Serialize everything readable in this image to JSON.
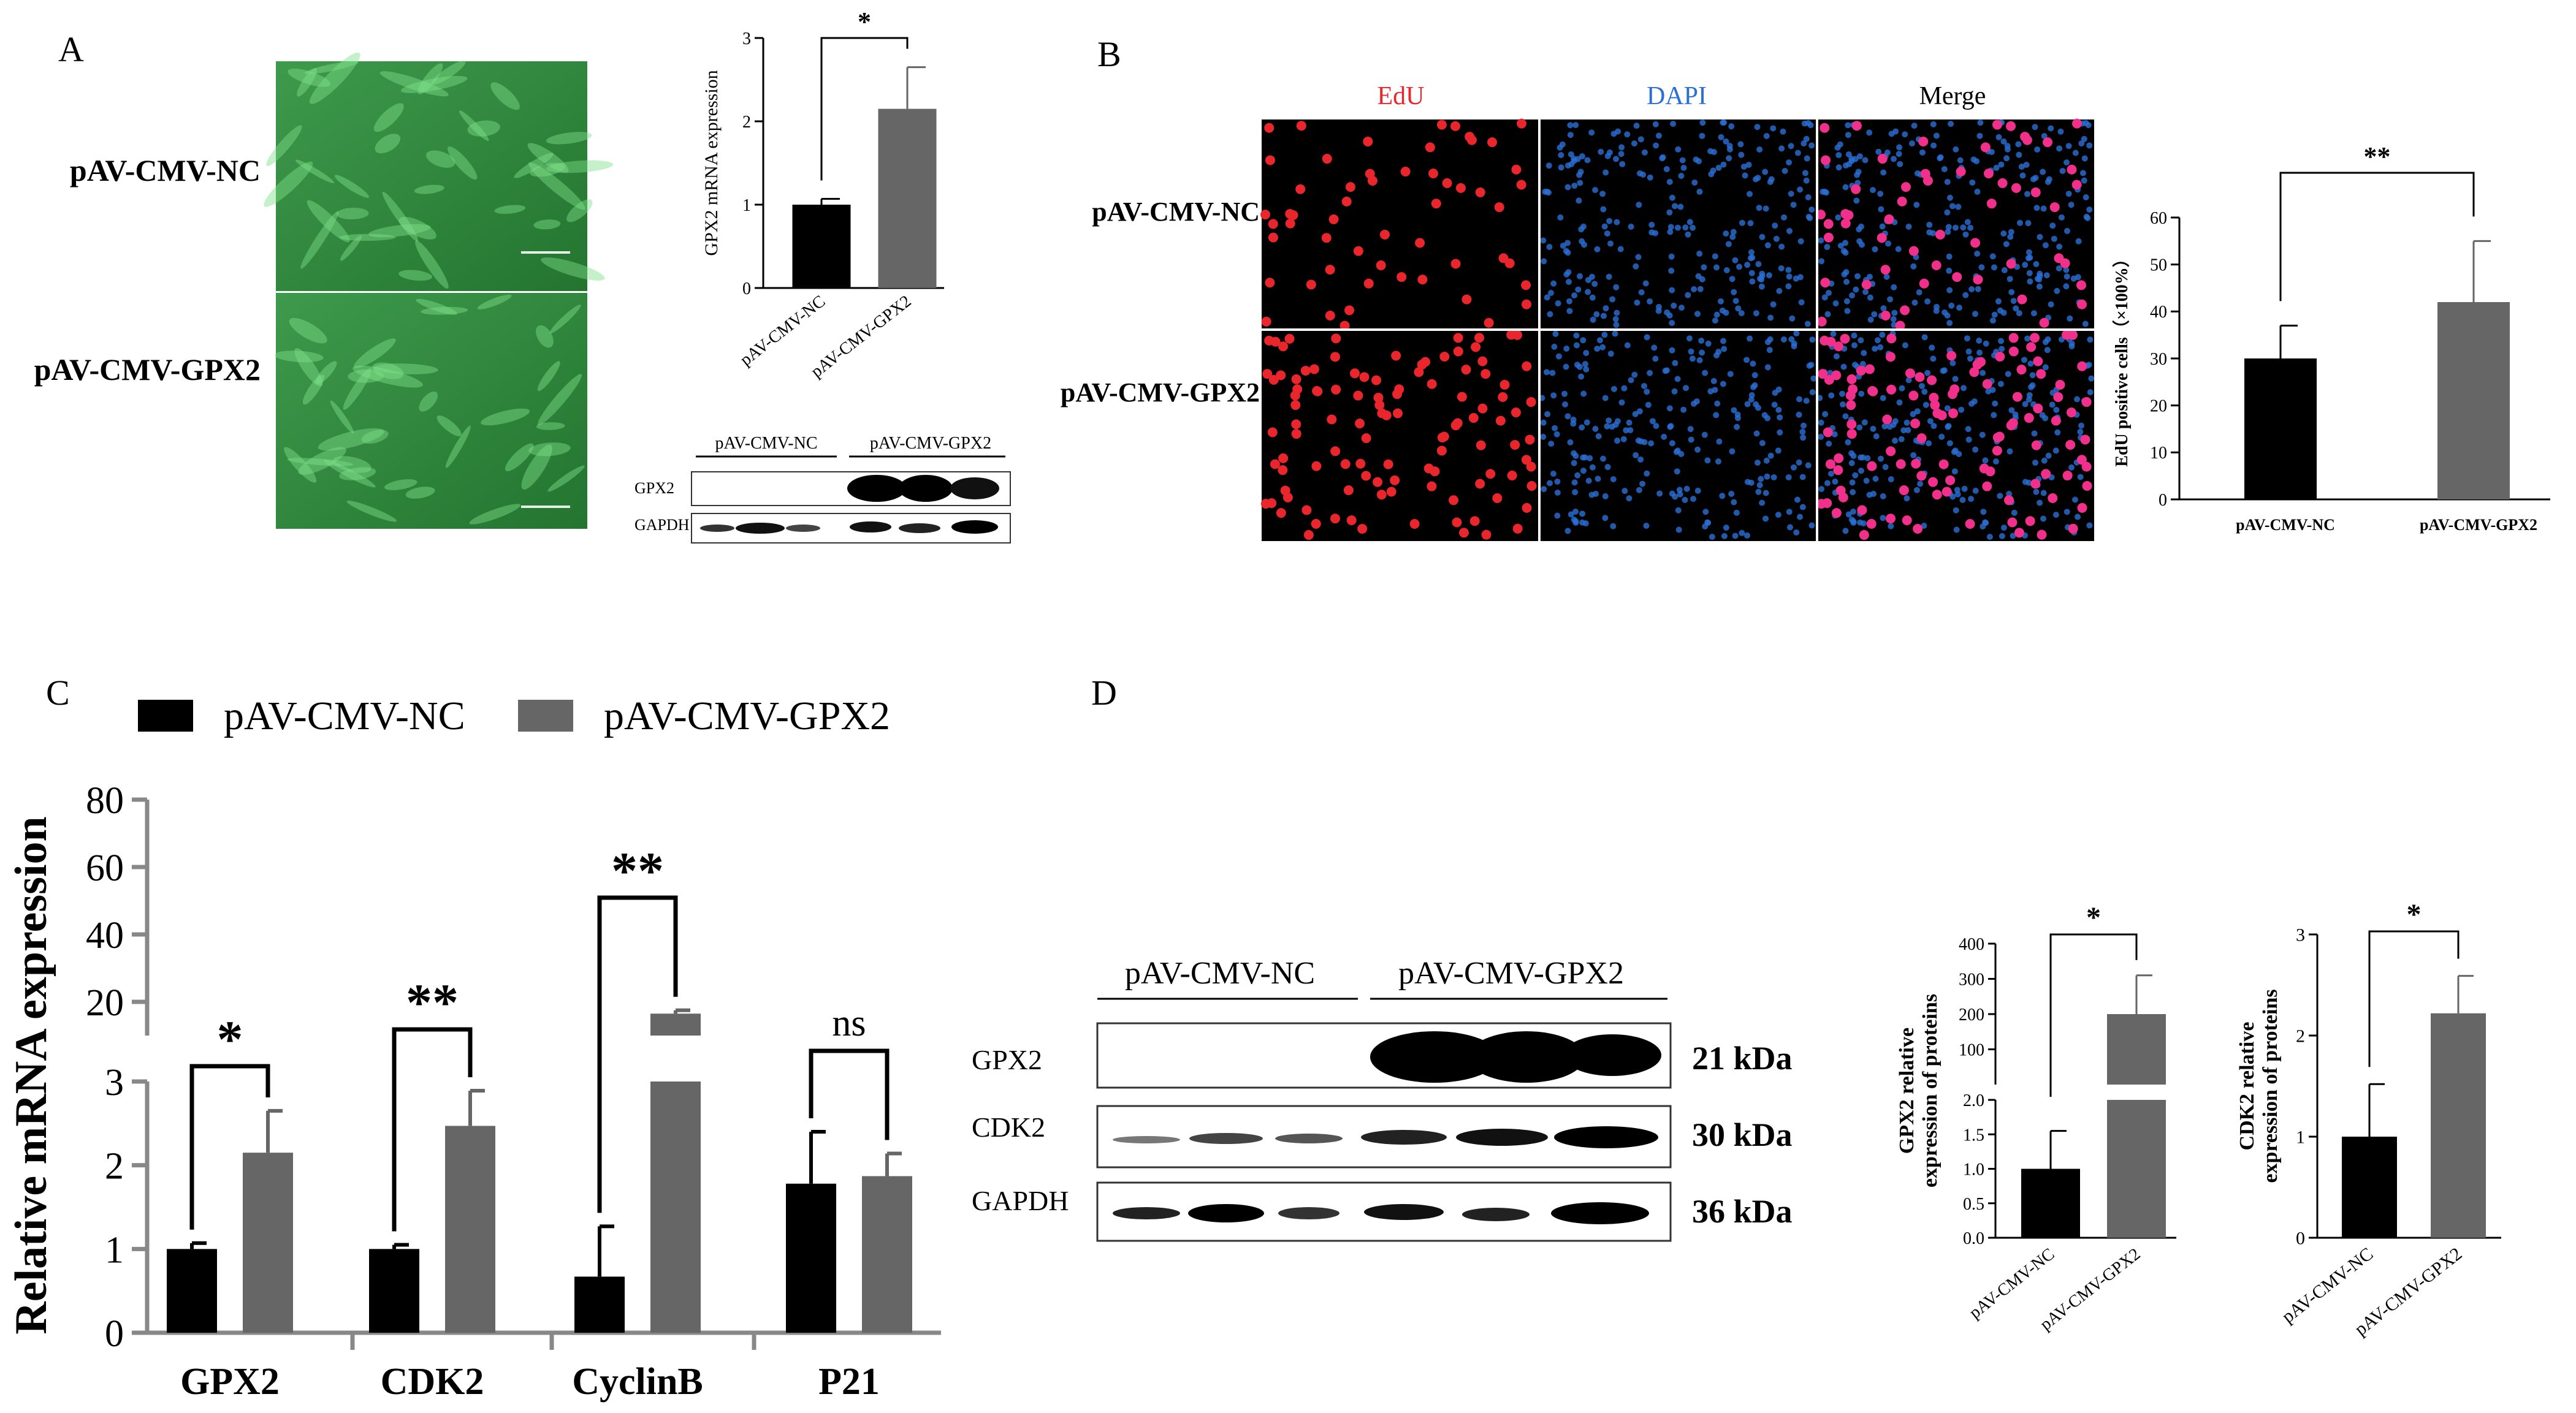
{
  "panels": {
    "A": "A",
    "B": "B",
    "C": "C",
    "D": "D"
  },
  "panelA": {
    "row_labels": [
      "pAV-CMV-NC",
      "pAV-CMV-GPX2"
    ],
    "wb": {
      "groups": [
        "pAV-CMV-NC",
        "pAV-CMV-GPX2"
      ],
      "bands": [
        "GPX2",
        "GAPDH"
      ]
    }
  },
  "panelB": {
    "col_labels": [
      "EdU",
      "DAPI",
      "Merge"
    ],
    "row_labels": [
      "pAV-CMV-NC",
      "pAV-CMV-GPX2"
    ],
    "colors": {
      "edu": "#e8262b",
      "dapi": "#2a6fd6"
    }
  },
  "panelC": {
    "legend": [
      "pAV-CMV-NC",
      "pAV-CMV-GPX2"
    ]
  },
  "panelD": {
    "wb": {
      "groups": [
        "pAV-CMV-NC",
        "pAV-CMV-GPX2"
      ],
      "bands": [
        "GPX2",
        "CDK2",
        "GAPDH"
      ],
      "kda": [
        "21 kDa",
        "30 kDa",
        "36 kDa"
      ]
    }
  },
  "colors": {
    "nc": "#000000",
    "gpx2": "#666666"
  },
  "chart_data": [
    {
      "id": "A-bar",
      "type": "bar",
      "categories": [
        "pAV-CMV-NC",
        "pAV-CMV-GPX2"
      ],
      "values": [
        1.0,
        2.15
      ],
      "errors": [
        0.07,
        0.5
      ],
      "ylabel": "GPX2 mRNA expression",
      "ylim": [
        0,
        3
      ],
      "yticks": [
        "0",
        "1",
        "2",
        "3"
      ],
      "significance": "*"
    },
    {
      "id": "B-bar",
      "type": "bar",
      "categories": [
        "pAV-CMV-NC",
        "pAV-CMV-GPX2"
      ],
      "values": [
        30,
        42
      ],
      "errors": [
        7,
        13
      ],
      "ylabel": "EdU positive cells（×100%）",
      "ylim": [
        0,
        60
      ],
      "yticks": [
        "0",
        "10",
        "20",
        "30",
        "40",
        "50",
        "60"
      ],
      "significance": "**"
    },
    {
      "id": "C-bar",
      "type": "bar",
      "categories": [
        "GPX2",
        "CDK2",
        "CyclinB",
        "P21"
      ],
      "series": [
        {
          "name": "pAV-CMV-NC",
          "values": [
            1.0,
            1.0,
            0.67,
            1.78
          ],
          "errors": [
            0.07,
            0.05,
            0.6,
            0.62
          ]
        },
        {
          "name": "pAV-CMV-GPX2",
          "values": [
            2.15,
            2.47,
            16.5,
            1.87
          ],
          "errors": [
            0.5,
            0.42,
            1.0,
            0.27
          ]
        }
      ],
      "ylabel": "Relative mRNA expression",
      "ylim": [
        0,
        80
      ],
      "yticks_lower": [
        "0",
        "1",
        "2",
        "3"
      ],
      "yticks_upper": [
        "20",
        "40",
        "60",
        "80"
      ],
      "significance": [
        "*",
        "**",
        "**",
        "ns"
      ]
    },
    {
      "id": "D-bar1",
      "type": "bar",
      "categories": [
        "pAV-CMV-NC",
        "pAV-CMV-GPX2"
      ],
      "values": [
        1.0,
        200
      ],
      "errors": [
        0.55,
        110
      ],
      "ylabel": "GPX2 relative expression of proteins",
      "ylim": [
        0,
        400
      ],
      "yticks_lower": [
        "0.0",
        "0.5",
        "1.0",
        "1.5",
        "2.0"
      ],
      "yticks_upper": [
        "100",
        "200",
        "300",
        "400"
      ],
      "significance": "*"
    },
    {
      "id": "D-bar2",
      "type": "bar",
      "categories": [
        "pAV-CMV-NC",
        "pAV-CMV-GPX2"
      ],
      "values": [
        1.0,
        2.22
      ],
      "errors": [
        0.52,
        0.37
      ],
      "ylabel": "CDK2 relative expression of proteins",
      "ylim": [
        0,
        3
      ],
      "yticks": [
        "0",
        "1",
        "2",
        "3"
      ],
      "significance": "*"
    }
  ]
}
